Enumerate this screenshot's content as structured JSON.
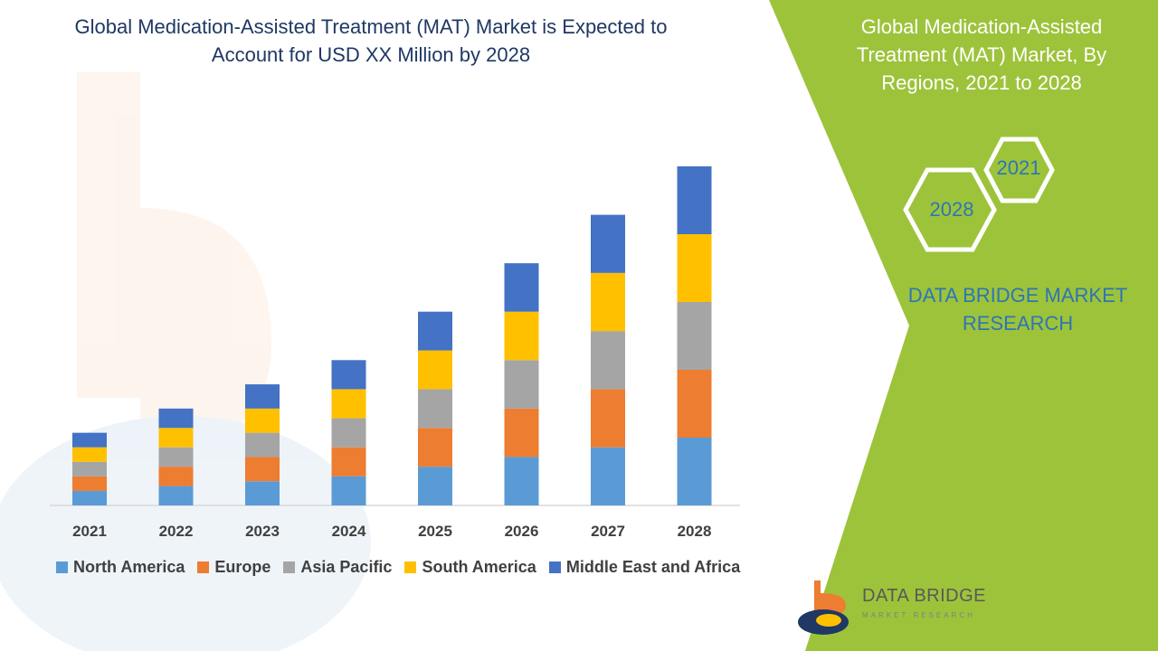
{
  "header": {
    "title": "Global Medication-Assisted Treatment (MAT) Market is Expected to Account for USD XX Million by 2028"
  },
  "panel": {
    "title": "Global Medication-Assisted Treatment (MAT) Market, By Regions, 2021 to 2028",
    "hex_start": "2021",
    "hex_end": "2028",
    "brand": "DATA BRIDGE MARKET RESEARCH"
  },
  "logo": {
    "name": "DATA BRIDGE",
    "tagline": "MARKET RESEARCH"
  },
  "colors": {
    "panel_green": "#9dc33b",
    "title_blue": "#1f3864",
    "brand_blue": "#2e75b6"
  },
  "chart_data": {
    "type": "bar",
    "stacked": true,
    "categories": [
      "2021",
      "2022",
      "2023",
      "2024",
      "2025",
      "2026",
      "2027",
      "2028"
    ],
    "series": [
      {
        "name": "North America",
        "color": "#5b9bd5",
        "values": [
          3,
          4,
          5,
          6,
          8,
          10,
          12,
          14
        ]
      },
      {
        "name": "Europe",
        "color": "#ed7d31",
        "values": [
          3,
          4,
          5,
          6,
          8,
          10,
          12,
          14
        ]
      },
      {
        "name": "Asia Pacific",
        "color": "#a5a5a5",
        "values": [
          3,
          4,
          5,
          6,
          8,
          10,
          12,
          14
        ]
      },
      {
        "name": "South America",
        "color": "#ffc000",
        "values": [
          3,
          4,
          5,
          6,
          8,
          10,
          12,
          14
        ]
      },
      {
        "name": "Middle East and Africa",
        "color": "#4472c4",
        "values": [
          3,
          4,
          5,
          6,
          8,
          10,
          12,
          14
        ]
      }
    ],
    "legend_position": "bottom",
    "grid": false,
    "ylim": [
      0,
      70
    ]
  }
}
